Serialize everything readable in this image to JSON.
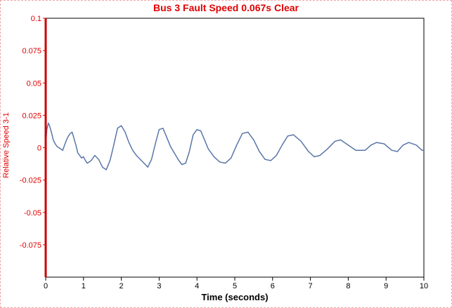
{
  "chart_data": {
    "type": "line",
    "title": "Bus 3 Fault Speed 0.067s Clear",
    "xlabel": "Time (seconds)",
    "ylabel": "Relative Speed 3-1",
    "xlim": [
      0,
      10
    ],
    "ylim": [
      -0.1,
      0.1
    ],
    "x_ticks": [
      0,
      1,
      2,
      3,
      4,
      5,
      6,
      7,
      8,
      9,
      10
    ],
    "y_ticks": [
      0.1,
      0.075,
      0.05,
      0.025,
      0,
      -0.025,
      -0.05,
      -0.075
    ],
    "y_tick_labels": [
      "0.1",
      "0.075",
      "0.05",
      "0.025",
      "0",
      "-0.025",
      "-0.05",
      "-0.075"
    ],
    "grid": false,
    "series": [
      {
        "color": "#5a76a8",
        "x": [
          0,
          0.03,
          0.07,
          0.1,
          0.15,
          0.2,
          0.25,
          0.3,
          0.35,
          0.4,
          0.45,
          0.5,
          0.55,
          0.6,
          0.65,
          0.7,
          0.75,
          0.8,
          0.85,
          0.9,
          0.95,
          1.0,
          1.05,
          1.1,
          1.15,
          1.2,
          1.3,
          1.4,
          1.5,
          1.6,
          1.7,
          1.8,
          1.9,
          2.0,
          2.1,
          2.2,
          2.3,
          2.4,
          2.5,
          2.6,
          2.7,
          2.8,
          2.9,
          3.0,
          3.1,
          3.2,
          3.3,
          3.4,
          3.5,
          3.6,
          3.7,
          3.8,
          3.9,
          4.0,
          4.1,
          4.2,
          4.3,
          4.45,
          4.6,
          4.75,
          4.9,
          5.05,
          5.2,
          5.35,
          5.5,
          5.65,
          5.8,
          5.95,
          6.1,
          6.25,
          6.4,
          6.55,
          6.75,
          6.95,
          7.1,
          7.25,
          7.45,
          7.65,
          7.8,
          7.95,
          8.2,
          8.45,
          8.6,
          8.75,
          8.95,
          9.15,
          9.3,
          9.45,
          9.6,
          9.8,
          9.95,
          10.0
        ],
        "y": [
          0.002,
          0.014,
          0.019,
          0.017,
          0.012,
          0.006,
          0.003,
          0.001,
          0.0,
          -0.001,
          -0.002,
          0.002,
          0.006,
          0.009,
          0.011,
          0.012,
          0.007,
          0.002,
          -0.004,
          -0.006,
          -0.008,
          -0.007,
          -0.01,
          -0.012,
          -0.011,
          -0.01,
          -0.006,
          -0.009,
          -0.015,
          -0.017,
          -0.01,
          0.002,
          0.015,
          0.017,
          0.012,
          0.004,
          -0.002,
          -0.006,
          -0.009,
          -0.012,
          -0.015,
          -0.009,
          0.003,
          0.014,
          0.015,
          0.008,
          0.001,
          -0.004,
          -0.009,
          -0.013,
          -0.012,
          -0.003,
          0.01,
          0.014,
          0.013,
          0.006,
          -0.001,
          -0.007,
          -0.011,
          -0.012,
          -0.008,
          0.002,
          0.011,
          0.012,
          0.006,
          -0.003,
          -0.009,
          -0.01,
          -0.006,
          0.002,
          0.009,
          0.01,
          0.005,
          -0.003,
          -0.007,
          -0.006,
          -0.001,
          0.005,
          0.006,
          0.003,
          -0.002,
          -0.002,
          0.002,
          0.004,
          0.003,
          -0.002,
          -0.003,
          0.002,
          0.004,
          0.002,
          -0.002,
          -0.002
        ]
      }
    ]
  }
}
